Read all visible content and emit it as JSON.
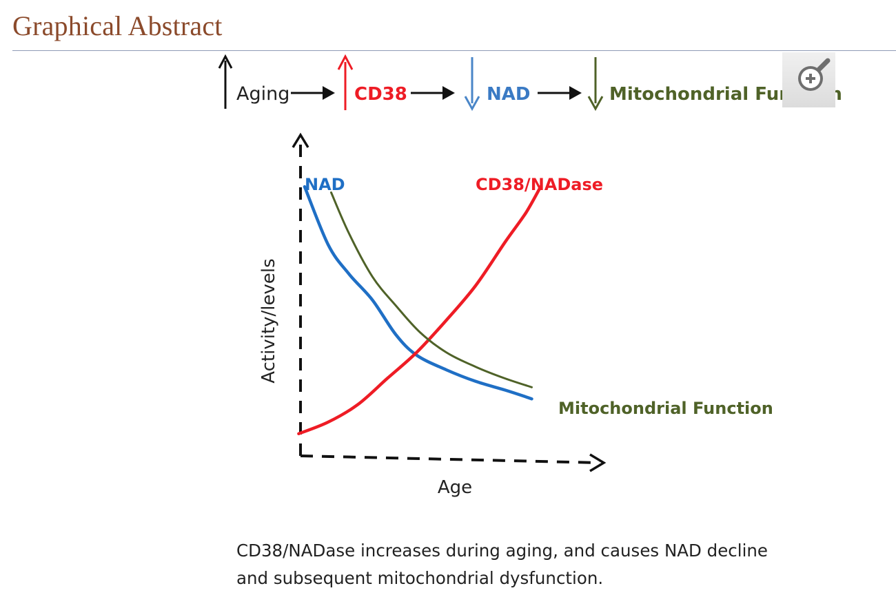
{
  "header": {
    "title": "Graphical Abstract"
  },
  "pathway": {
    "steps": [
      {
        "label": "Aging",
        "direction": "up",
        "color": "#111111"
      },
      {
        "label": "CD38",
        "direction": "up",
        "color": "#ee1c25"
      },
      {
        "label": "NAD",
        "direction": "down",
        "color": "#4a86c8"
      },
      {
        "label": "Mitochondrial Function",
        "direction": "down",
        "color": "#4f6228"
      }
    ]
  },
  "chart_data": {
    "type": "line",
    "xlabel": "Age",
    "ylabel": "Activity/levels",
    "axes_style": "dashed with arrowheads, no ticks",
    "xlim": [
      0,
      10
    ],
    "ylim": [
      0,
      10
    ],
    "series": [
      {
        "name": "NAD",
        "color": "#1f6fc5",
        "x": [
          0.7,
          1.5,
          2.2,
          3.0,
          3.8,
          4.5,
          5.5,
          6.5,
          7.5,
          8.4
        ],
        "y": [
          9.5,
          7.5,
          6.5,
          5.6,
          4.4,
          3.7,
          3.2,
          2.8,
          2.5,
          2.2
        ]
      },
      {
        "name": "CD38/NADase",
        "color": "#ee1c25",
        "x": [
          0.5,
          1.5,
          2.5,
          3.5,
          4.5,
          5.5,
          6.5,
          7.5,
          8.2,
          8.7
        ],
        "y": [
          1.0,
          1.4,
          2.0,
          2.9,
          3.8,
          4.9,
          6.1,
          7.6,
          8.6,
          9.5
        ]
      },
      {
        "name": "Mitochondrial Function",
        "color": "#4f6228",
        "x": [
          1.6,
          2.2,
          3.0,
          3.8,
          4.6,
          5.5,
          6.5,
          7.5,
          8.4
        ],
        "y": [
          9.3,
          7.9,
          6.4,
          5.4,
          4.5,
          3.8,
          3.3,
          2.9,
          2.6
        ]
      }
    ]
  },
  "zoom": {
    "icon": "zoom-in-icon"
  },
  "caption": {
    "line1": "CD38/NADase increases during aging, and causes NAD decline",
    "line2": "and subsequent mitochondrial dysfunction."
  },
  "colors": {
    "title": "#8b4a2b",
    "rule": "#8e9bb5",
    "nad": "#1f6fc5",
    "cd38": "#ee1c25",
    "mito": "#4f6228"
  }
}
